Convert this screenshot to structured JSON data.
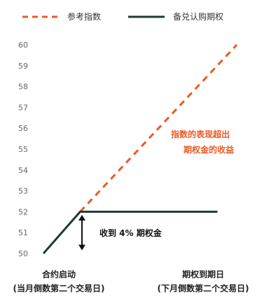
{
  "colors": {
    "reference": "#ec5a24",
    "call": "#1d3a36",
    "annotation_orange": "#ec5a24",
    "annotation_dark": "#111111",
    "arrow": "#111111",
    "grid": "#dddddd"
  },
  "legend": {
    "reference_label": "参考指数",
    "call_label": "备兑认购期权"
  },
  "x_axis": {
    "start_label_line1": "合约启动",
    "start_label_line2": "(当月倒数第二个交易日)",
    "end_label_line1": "期权到期日",
    "end_label_line2": "(下月倒数第二个交易日)"
  },
  "annotations": {
    "excess_line1": "指数的表现超出",
    "excess_line2": "期权金的收益",
    "premium": "收到 4% 期权金"
  },
  "chart_data": {
    "type": "line",
    "title": "",
    "xlabel": "",
    "ylabel": "",
    "ylim": [
      50,
      60
    ],
    "y_ticks": [
      50,
      51,
      52,
      53,
      54,
      55,
      56,
      57,
      58,
      59,
      60
    ],
    "grid": false,
    "legend_position": "top",
    "series": [
      {
        "name": "参考指数",
        "style": "dashed",
        "color": "#ec5a24",
        "points": [
          [
            0.19,
            52
          ],
          [
            1.0,
            60
          ]
        ]
      },
      {
        "name": "备兑认购期权",
        "style": "solid",
        "color": "#1d3a36",
        "points": [
          [
            0.0,
            50
          ],
          [
            0.19,
            52
          ],
          [
            0.9,
            52
          ]
        ]
      }
    ]
  }
}
